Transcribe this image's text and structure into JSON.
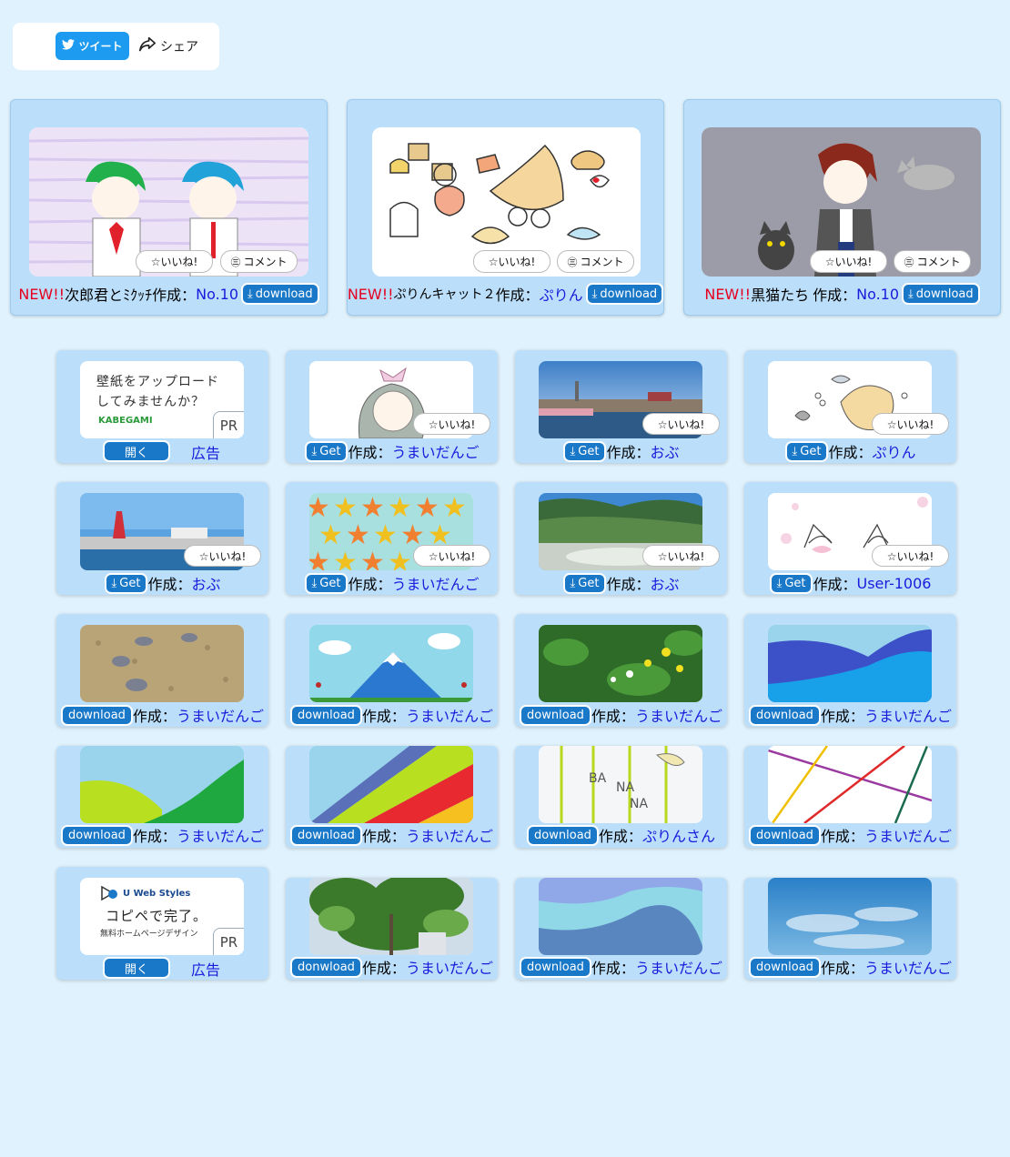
{
  "share": {
    "tweet_label": "ツイート",
    "share_label": "シェア"
  },
  "featured": [
    {
      "new": "NEW!!",
      "title": "次郎君とﾐｸｯﾁ",
      "by": "作成：",
      "author": "No.10",
      "download": "download",
      "like": "☆いいね!",
      "comment": "コメント"
    },
    {
      "new": "NEW!!",
      "title": "ぷりんキャット２",
      "by": "作成：",
      "author": "ぷりん",
      "download": "download",
      "like": "☆いいね!",
      "comment": "コメント"
    },
    {
      "new": "NEW!!",
      "title": "黒猫たち",
      "by": "作成：",
      "author": "No.10",
      "download": "download",
      "like": "☆いいね!",
      "comment": "コメント"
    }
  ],
  "ads": [
    {
      "line1": "壁紙をアップロード",
      "line2": "してみませんか？",
      "brand": "KABEGAMI",
      "pr": "PR",
      "open": "開く",
      "label": "広告"
    },
    {
      "brand": "U Web Styles",
      "line1": "コピペで完了。",
      "line2": "無料ホームページデザイン",
      "pr": "PR",
      "open": "開く",
      "label": "広告"
    }
  ],
  "grid_row1": [
    {
      "button": "Get",
      "by": "作成：",
      "author": "うまいだんご",
      "like": "☆いいね!"
    },
    {
      "button": "Get",
      "by": "作成：",
      "author": "おぶ",
      "like": "☆いいね!"
    },
    {
      "button": "Get",
      "by": "作成：",
      "author": "ぷりん",
      "like": "☆いいね!"
    }
  ],
  "grid_row2": [
    {
      "button": "Get",
      "by": "作成：",
      "author": "おぶ",
      "like": "☆いいね!"
    },
    {
      "button": "Get",
      "by": "作成：",
      "author": "うまいだんご",
      "like": "☆いいね!"
    },
    {
      "button": "Get",
      "by": "作成：",
      "author": "おぶ",
      "like": "☆いいね!"
    },
    {
      "button": "Get",
      "by": "作成：",
      "author": "User-1006",
      "like": "☆いいね!"
    }
  ],
  "grid_row3": [
    {
      "button": "download",
      "by": "作成：",
      "author": "うまいだんご"
    },
    {
      "button": "download",
      "by": "作成：",
      "author": "うまいだんご"
    },
    {
      "button": "download",
      "by": "作成：",
      "author": "うまいだんご"
    },
    {
      "button": "download",
      "by": "作成：",
      "author": "うまいだんご"
    }
  ],
  "grid_row4": [
    {
      "button": "download",
      "by": "作成：",
      "author": "うまいだんご"
    },
    {
      "button": "download",
      "by": "作成：",
      "author": "うまいだんご"
    },
    {
      "button": "download",
      "by": "作成：",
      "author": "ぷりんさん"
    },
    {
      "button": "download",
      "by": "作成：",
      "author": "うまいだんご"
    }
  ],
  "grid_row5": [
    {
      "button": "donwload",
      "by": "作成：",
      "author": "うまいだんご"
    },
    {
      "button": "download",
      "by": "作成：",
      "author": "うまいだんご"
    },
    {
      "button": "download",
      "by": "作成：",
      "author": "うまいだんご"
    }
  ],
  "colors": {
    "card_bg": "#bbdffb",
    "page_bg": "#e0f2fd",
    "button": "#1a78c8",
    "new": "#e6001f",
    "author": "#1a1adb"
  }
}
